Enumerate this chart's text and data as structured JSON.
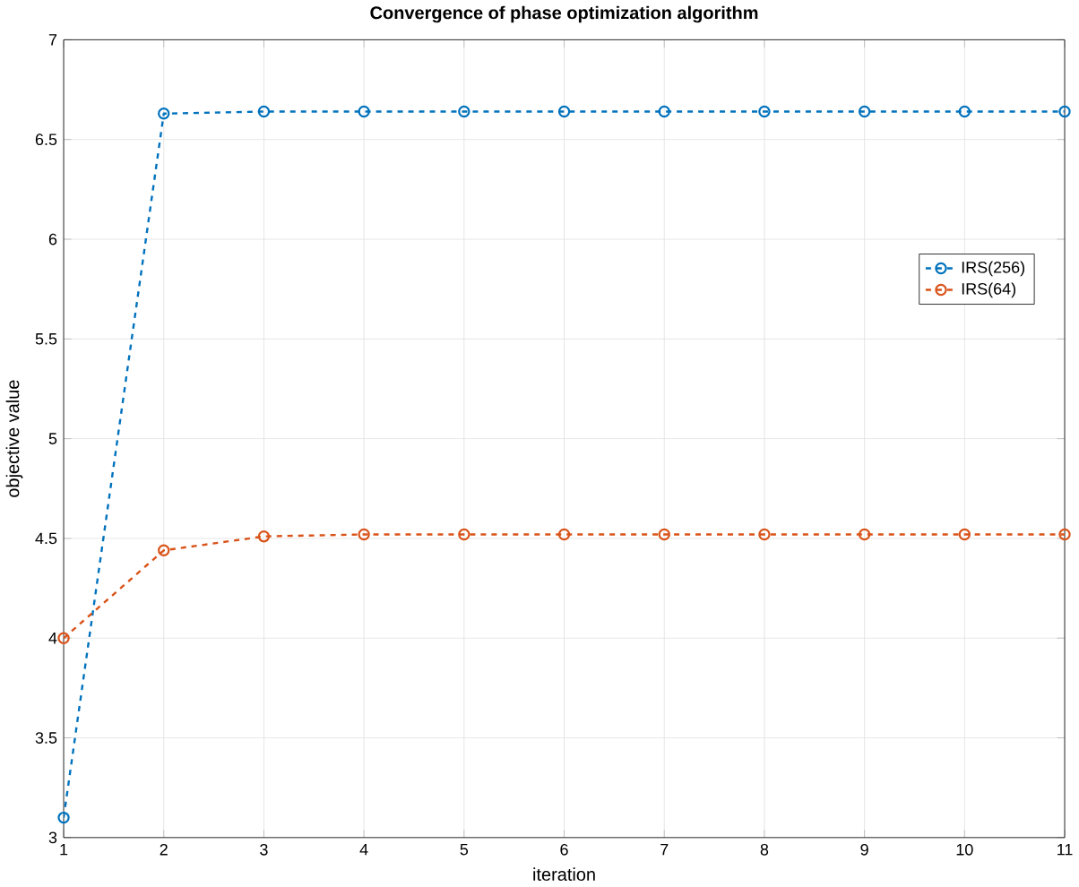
{
  "chart_data": {
    "type": "line",
    "title": "Convergence of phase optimization algorithm",
    "xlabel": "iteration",
    "ylabel": "objective value",
    "x": [
      1,
      2,
      3,
      4,
      5,
      6,
      7,
      8,
      9,
      10,
      11
    ],
    "series": [
      {
        "name": "IRS(256)",
        "color": "#0072bd",
        "values": [
          3.1,
          6.63,
          6.64,
          6.64,
          6.64,
          6.64,
          6.64,
          6.64,
          6.64,
          6.64,
          6.64
        ]
      },
      {
        "name": "IRS(64)",
        "color": "#d95319",
        "values": [
          4.0,
          4.44,
          4.51,
          4.52,
          4.52,
          4.52,
          4.52,
          4.52,
          4.52,
          4.52,
          4.52
        ]
      }
    ],
    "xlim": [
      1,
      11
    ],
    "xticks": [
      1,
      2,
      3,
      4,
      5,
      6,
      7,
      8,
      9,
      10,
      11
    ],
    "ylim": [
      3,
      7
    ],
    "yticks": [
      3,
      3.5,
      4,
      4.5,
      5,
      5.5,
      6,
      6.5,
      7
    ],
    "grid": true,
    "legend": "right",
    "marker": "circle",
    "line_style": "dashed"
  }
}
